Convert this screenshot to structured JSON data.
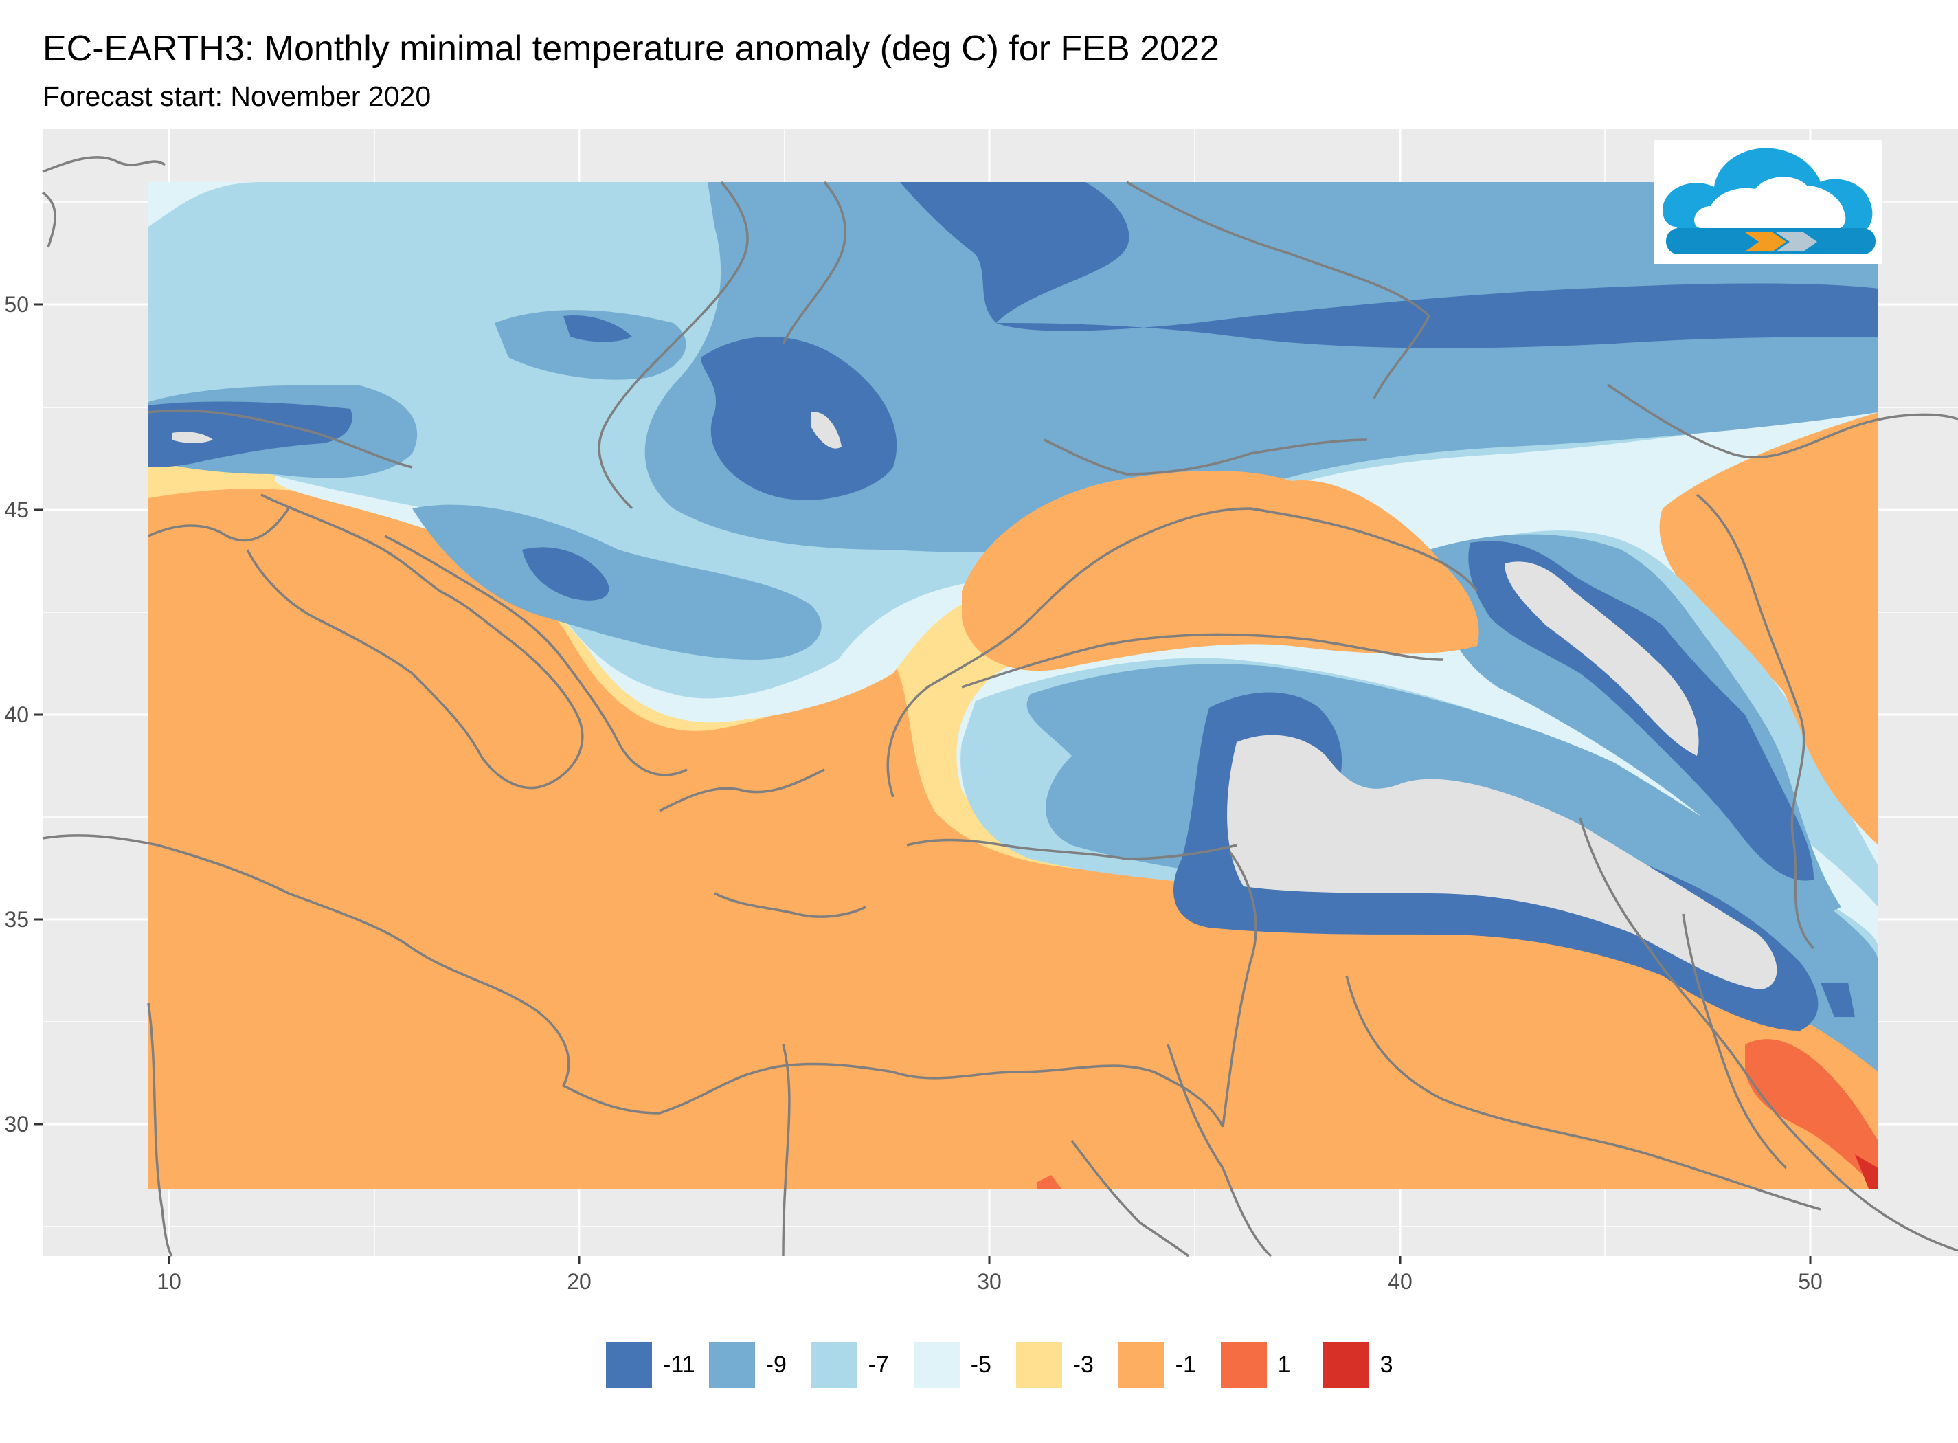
{
  "title": "EC-EARTH3: Monthly minimal temperature anomaly (deg C) for FEB 2022",
  "subtitle": "Forecast start: November 2020",
  "x_axis": {
    "ticks": [
      "10",
      "20",
      "30",
      "40",
      "50"
    ],
    "values": [
      10,
      20,
      30,
      40,
      50
    ]
  },
  "y_axis": {
    "ticks": [
      "30",
      "35",
      "40",
      "45",
      "50"
    ],
    "values": [
      30,
      35,
      40,
      45,
      50
    ]
  },
  "map_extent": {
    "lon": [
      6.9,
      54.8
    ],
    "lat": [
      26.7,
      53.8
    ]
  },
  "colors": {
    "panel_bg": "#ebebeb",
    "grid": "#ffffff",
    "coastline": "#7f7f7f",
    "no_data": "#e2e2e2"
  },
  "legend": [
    {
      "label": "-11",
      "color": "#4575b4"
    },
    {
      "label": "-9",
      "color": "#74add1"
    },
    {
      "label": "-7",
      "color": "#abd9e9"
    },
    {
      "label": "-5",
      "color": "#e0f3f8"
    },
    {
      "label": "-3",
      "color": "#fee090"
    },
    {
      "label": "-1",
      "color": "#fdae61"
    },
    {
      "label": "1",
      "color": "#f46d43"
    },
    {
      "label": "3",
      "color": "#d73027"
    }
  ],
  "logo": {
    "icon": "cloud-logo-icon"
  }
}
